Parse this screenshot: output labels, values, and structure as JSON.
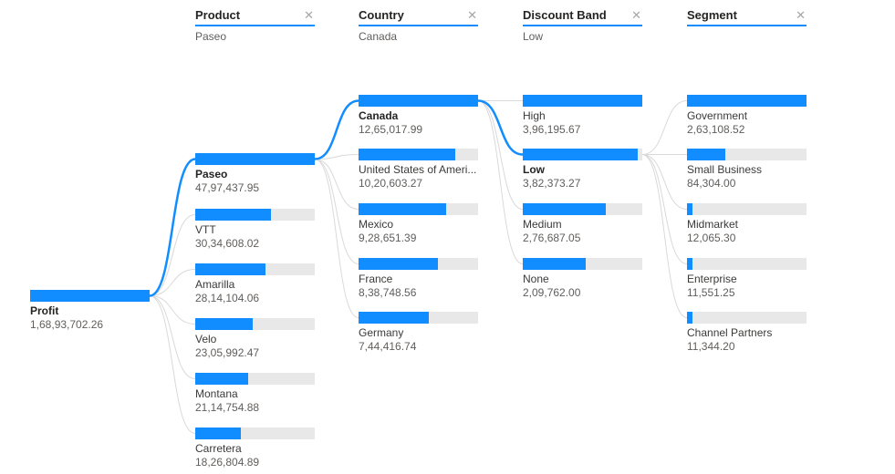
{
  "accent_color": "#118DFF",
  "track_color": "#E8E8E8",
  "connector_color": "#D9D9D9",
  "close_glyph": "✕",
  "root": {
    "label": "Profit",
    "value_display": "1,68,93,702.26",
    "value": 16893702.26,
    "selected": true
  },
  "levels": [
    {
      "title": "Product",
      "selected_label": "Paseo",
      "nodes": [
        {
          "label": "Paseo",
          "value_display": "47,97,437.95",
          "value": 4797437.95,
          "selected": true
        },
        {
          "label": "VTT",
          "value_display": "30,34,608.02",
          "value": 3034608.02,
          "selected": false
        },
        {
          "label": "Amarilla",
          "value_display": "28,14,104.06",
          "value": 2814104.06,
          "selected": false
        },
        {
          "label": "Velo",
          "value_display": "23,05,992.47",
          "value": 2305992.47,
          "selected": false
        },
        {
          "label": "Montana",
          "value_display": "21,14,754.88",
          "value": 2114754.88,
          "selected": false
        },
        {
          "label": "Carretera",
          "value_display": "18,26,804.89",
          "value": 1826804.89,
          "selected": false
        }
      ]
    },
    {
      "title": "Country",
      "selected_label": "Canada",
      "nodes": [
        {
          "label": "Canada",
          "value_display": "12,65,017.99",
          "value": 1265017.99,
          "selected": true
        },
        {
          "label": "United States of Ameri...",
          "value_display": "10,20,603.27",
          "value": 1020603.27,
          "selected": false
        },
        {
          "label": "Mexico",
          "value_display": "9,28,651.39",
          "value": 928651.39,
          "selected": false
        },
        {
          "label": "France",
          "value_display": "8,38,748.56",
          "value": 838748.56,
          "selected": false
        },
        {
          "label": "Germany",
          "value_display": "7,44,416.74",
          "value": 744416.74,
          "selected": false
        }
      ]
    },
    {
      "title": "Discount Band",
      "selected_label": "Low",
      "nodes": [
        {
          "label": "High",
          "value_display": "3,96,195.67",
          "value": 396195.67,
          "selected": false
        },
        {
          "label": "Low",
          "value_display": "3,82,373.27",
          "value": 382373.27,
          "selected": true
        },
        {
          "label": "Medium",
          "value_display": "2,76,687.05",
          "value": 276687.05,
          "selected": false
        },
        {
          "label": "None",
          "value_display": "2,09,762.00",
          "value": 209762.0,
          "selected": false
        }
      ]
    },
    {
      "title": "Segment",
      "selected_label": "",
      "nodes": [
        {
          "label": "Government",
          "value_display": "2,63,108.52",
          "value": 263108.52,
          "selected": false
        },
        {
          "label": "Small Business",
          "value_display": "84,304.00",
          "value": 84304.0,
          "selected": false
        },
        {
          "label": "Midmarket",
          "value_display": "12,065.30",
          "value": 12065.3,
          "selected": false
        },
        {
          "label": "Enterprise",
          "value_display": "11,551.25",
          "value": 11551.25,
          "selected": false
        },
        {
          "label": "Channel Partners",
          "value_display": "11,344.20",
          "value": 11344.2,
          "selected": false
        }
      ]
    }
  ],
  "chart_data": {
    "type": "decomposition_tree",
    "measure": "Profit",
    "root": {
      "label": "Profit",
      "value": 16893702.26
    },
    "expanded_path": [
      "Profit",
      "Paseo",
      "Canada",
      "Low"
    ],
    "levels": [
      {
        "field": "Product",
        "parent": "Profit",
        "selected": "Paseo",
        "items": [
          {
            "label": "Paseo",
            "value": 4797437.95
          },
          {
            "label": "VTT",
            "value": 3034608.02
          },
          {
            "label": "Amarilla",
            "value": 2814104.06
          },
          {
            "label": "Velo",
            "value": 2305992.47
          },
          {
            "label": "Montana",
            "value": 2114754.88
          },
          {
            "label": "Carretera",
            "value": 1826804.89
          }
        ]
      },
      {
        "field": "Country",
        "parent": "Paseo",
        "selected": "Canada",
        "items": [
          {
            "label": "Canada",
            "value": 1265017.99
          },
          {
            "label": "United States of America",
            "value": 1020603.27
          },
          {
            "label": "Mexico",
            "value": 928651.39
          },
          {
            "label": "France",
            "value": 838748.56
          },
          {
            "label": "Germany",
            "value": 744416.74
          }
        ]
      },
      {
        "field": "Discount Band",
        "parent": "Canada",
        "selected": "Low",
        "items": [
          {
            "label": "High",
            "value": 396195.67
          },
          {
            "label": "Low",
            "value": 382373.27
          },
          {
            "label": "Medium",
            "value": 276687.05
          },
          {
            "label": "None",
            "value": 209762.0
          }
        ]
      },
      {
        "field": "Segment",
        "parent": "Low",
        "selected": null,
        "items": [
          {
            "label": "Government",
            "value": 263108.52
          },
          {
            "label": "Small Business",
            "value": 84304.0
          },
          {
            "label": "Midmarket",
            "value": 12065.3
          },
          {
            "label": "Enterprise",
            "value": 11551.25
          },
          {
            "label": "Channel Partners",
            "value": 11344.2
          }
        ]
      }
    ],
    "bar_semantics": "bar fill length is proportional to value relative to the max value within each level",
    "legend": "off",
    "grid": "off"
  }
}
